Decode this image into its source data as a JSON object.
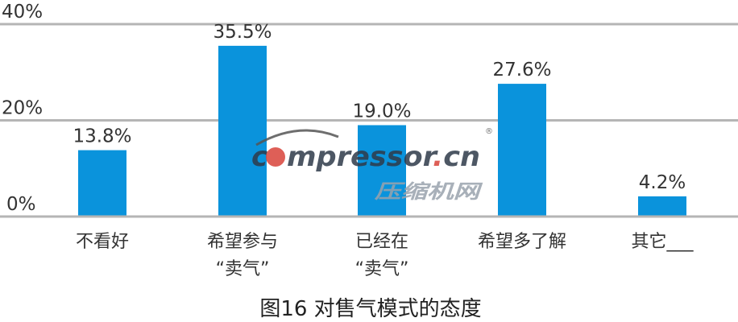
{
  "chart_data": {
    "type": "bar",
    "title": "图16 对售气模式的态度",
    "xlabel": "",
    "ylabel": "",
    "categories": [
      [
        "不看好"
      ],
      [
        "希望参与",
        "“卖气”"
      ],
      [
        "已经在",
        "“卖气”"
      ],
      [
        "希望多了解"
      ],
      [
        "其它___"
      ]
    ],
    "values": [
      13.8,
      35.5,
      19.0,
      27.6,
      4.2
    ],
    "data_labels": [
      "13.8%",
      "35.5%",
      "19.0%",
      "27.6%",
      "4.2%"
    ],
    "ylim": [
      0,
      40
    ],
    "yticks": [
      0,
      20,
      40
    ],
    "ytick_labels": [
      "0%",
      "20%",
      "40%"
    ],
    "grid": true,
    "legend": "none",
    "colors": {
      "bar": "#0a93dc",
      "grid": "#b5b5b5"
    }
  },
  "watermark": {
    "text": "compressor.cn",
    "subtext": "压缩机网",
    "registered": "®"
  }
}
